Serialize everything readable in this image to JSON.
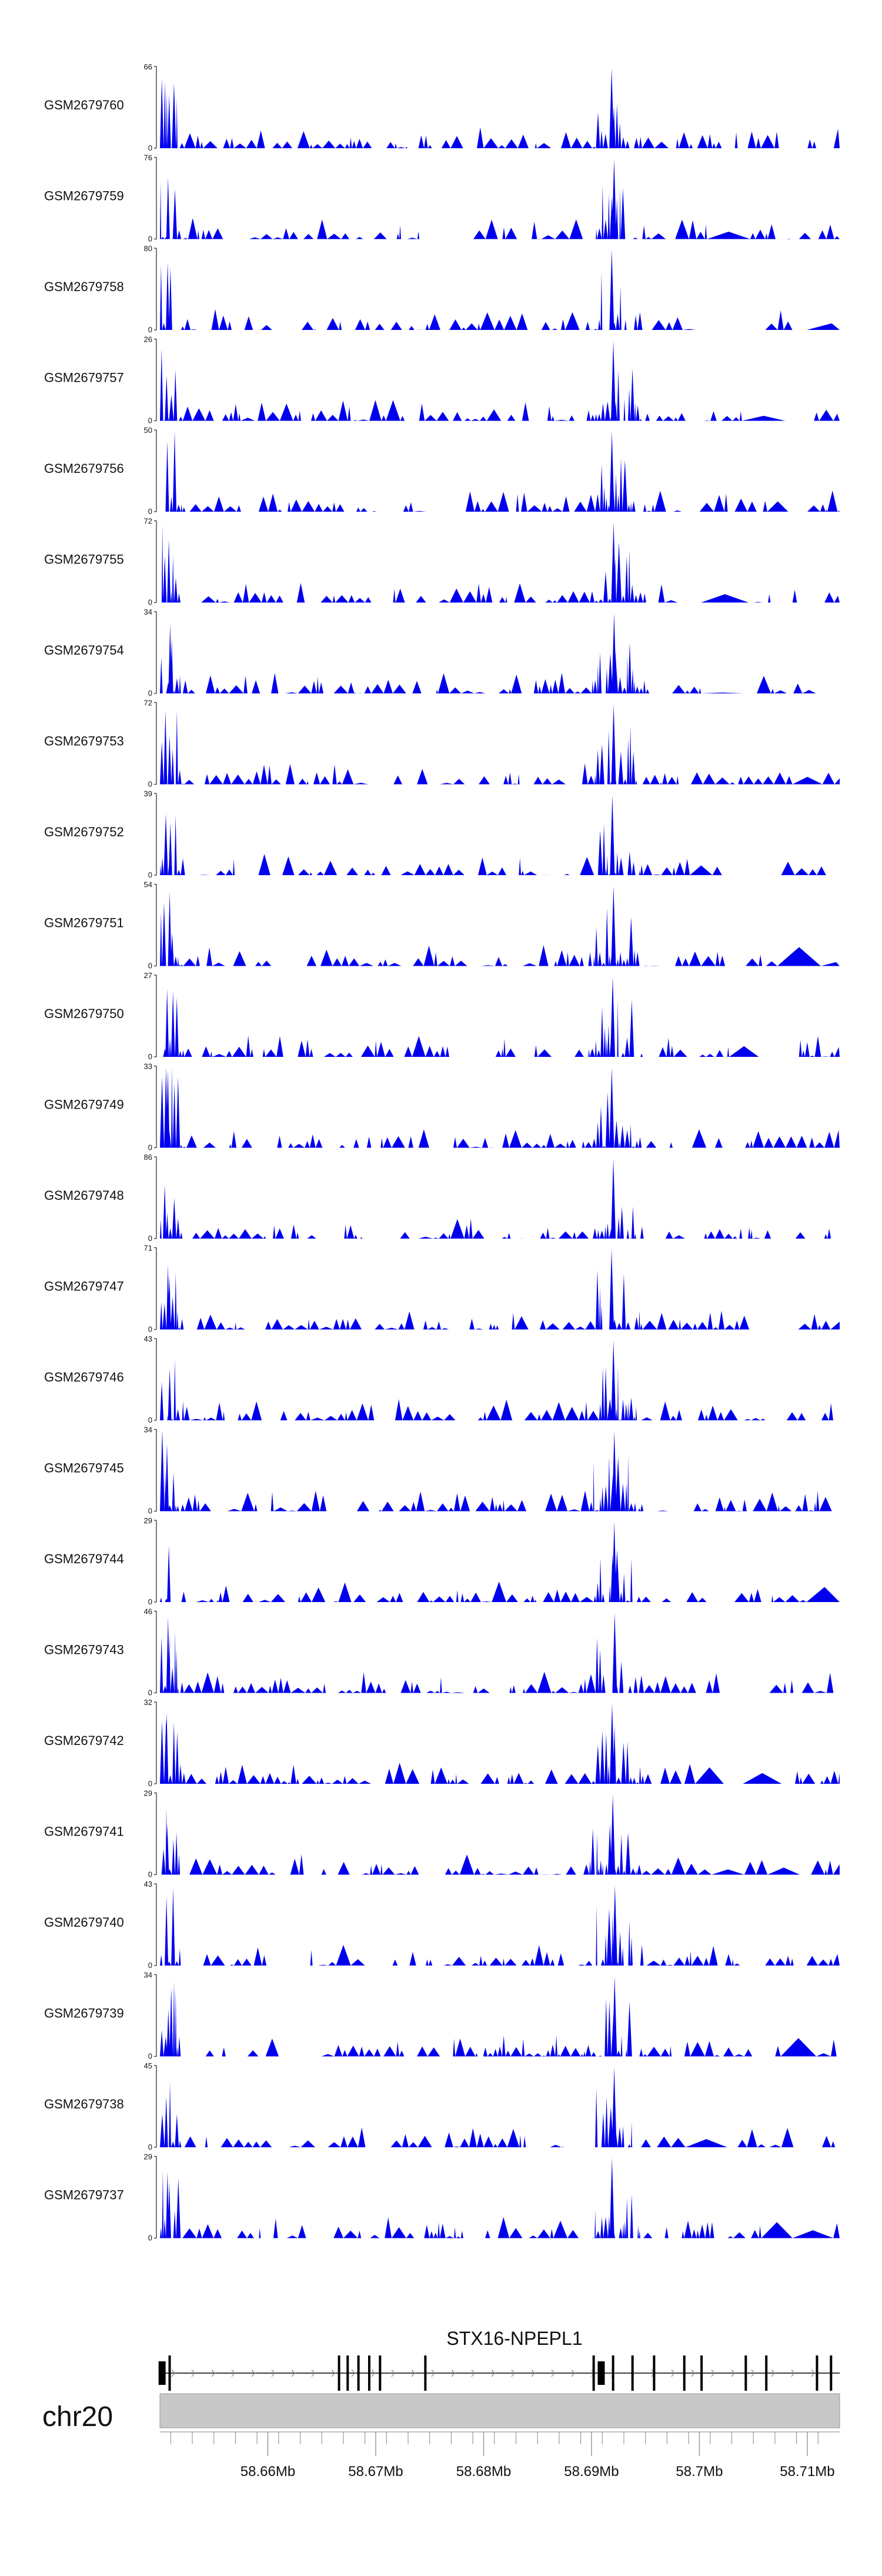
{
  "chart_data": {
    "type": "area",
    "chromosome": "chr20",
    "x_range_mb": [
      58.65,
      58.713
    ],
    "tracks": [
      {
        "name": "GSM2679760",
        "ymax": "66",
        "ymin": "0"
      },
      {
        "name": "GSM2679759",
        "ymax": "76",
        "ymin": "0"
      },
      {
        "name": "GSM2679758",
        "ymax": "80",
        "ymin": "0"
      },
      {
        "name": "GSM2679757",
        "ymax": "26",
        "ymin": "0"
      },
      {
        "name": "GSM2679756",
        "ymax": "50",
        "ymin": "0"
      },
      {
        "name": "GSM2679755",
        "ymax": "72",
        "ymin": "0"
      },
      {
        "name": "GSM2679754",
        "ymax": "34",
        "ymin": "0"
      },
      {
        "name": "GSM2679753",
        "ymax": "72",
        "ymin": "0"
      },
      {
        "name": "GSM2679752",
        "ymax": "39",
        "ymin": "0"
      },
      {
        "name": "GSM2679751",
        "ymax": "54",
        "ymin": "0"
      },
      {
        "name": "GSM2679750",
        "ymax": "27",
        "ymin": "0"
      },
      {
        "name": "GSM2679749",
        "ymax": "33",
        "ymin": "0"
      },
      {
        "name": "GSM2679748",
        "ymax": "86",
        "ymin": "0"
      },
      {
        "name": "GSM2679747",
        "ymax": "71",
        "ymin": "0"
      },
      {
        "name": "GSM2679746",
        "ymax": "43",
        "ymin": "0"
      },
      {
        "name": "GSM2679745",
        "ymax": "34",
        "ymin": "0"
      },
      {
        "name": "GSM2679744",
        "ymax": "29",
        "ymin": "0"
      },
      {
        "name": "GSM2679743",
        "ymax": "46",
        "ymin": "0"
      },
      {
        "name": "GSM2679742",
        "ymax": "32",
        "ymin": "0"
      },
      {
        "name": "GSM2679741",
        "ymax": "29",
        "ymin": "0"
      },
      {
        "name": "GSM2679740",
        "ymax": "43",
        "ymin": "0"
      },
      {
        "name": "GSM2679739",
        "ymax": "34",
        "ymin": "0"
      },
      {
        "name": "GSM2679738",
        "ymax": "45",
        "ymin": "0"
      },
      {
        "name": "GSM2679737",
        "ymax": "29",
        "ymin": "0"
      }
    ],
    "gene": {
      "name": "STX16-NPEPL1",
      "strand": "+",
      "start_mb": 58.65,
      "end_mb": 58.713,
      "exons_mb": [
        58.6502,
        58.6509,
        58.6666,
        58.6674,
        58.6684,
        58.6694,
        58.6704,
        58.6746,
        58.6902,
        58.6909,
        58.692,
        58.6938,
        58.6958,
        58.6986,
        58.7002,
        58.7043,
        58.7062,
        58.7109,
        58.7122
      ]
    },
    "axis": {
      "ticks": [
        {
          "value": 58.66,
          "label": "58.66Mb"
        },
        {
          "value": 58.67,
          "label": "58.67Mb"
        },
        {
          "value": 58.68,
          "label": "58.68Mb"
        },
        {
          "value": 58.69,
          "label": "58.69Mb"
        },
        {
          "value": 58.7,
          "label": "58.7Mb"
        },
        {
          "value": 58.71,
          "label": "58.71Mb"
        }
      ]
    },
    "colors": {
      "signal": "#0000ee",
      "axis_bar": "#c8c8c8",
      "gene_line": "#000000"
    }
  }
}
